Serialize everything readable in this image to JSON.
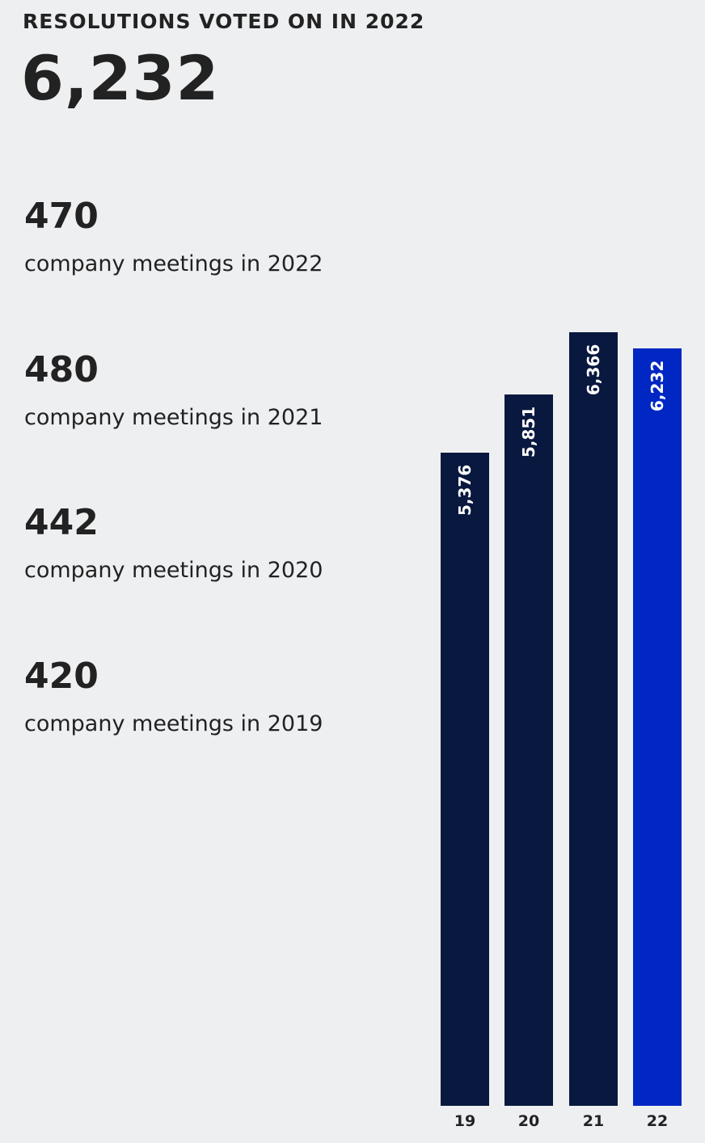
{
  "header": {
    "title": "RESOLUTIONS VOTED ON IN 2022",
    "value": "6,232"
  },
  "stats": [
    {
      "number": "470",
      "label": "company meetings in 2022"
    },
    {
      "number": "480",
      "label": "company meetings in 2021"
    },
    {
      "number": "442",
      "label": "company meetings in 2020"
    },
    {
      "number": "420",
      "label": "company meetings in 2019"
    }
  ],
  "chart_data": {
    "type": "bar",
    "title": "Resolutions voted on",
    "categories": [
      "19",
      "20",
      "21",
      "22"
    ],
    "values": [
      5376,
      5851,
      6366,
      6232
    ],
    "value_labels": [
      "5,376",
      "5,851",
      "6,366",
      "6,232"
    ],
    "colors": [
      "#08183e",
      "#08183e",
      "#08183e",
      "#0027c4"
    ],
    "ylim": [
      0,
      6366
    ],
    "grid": false
  }
}
